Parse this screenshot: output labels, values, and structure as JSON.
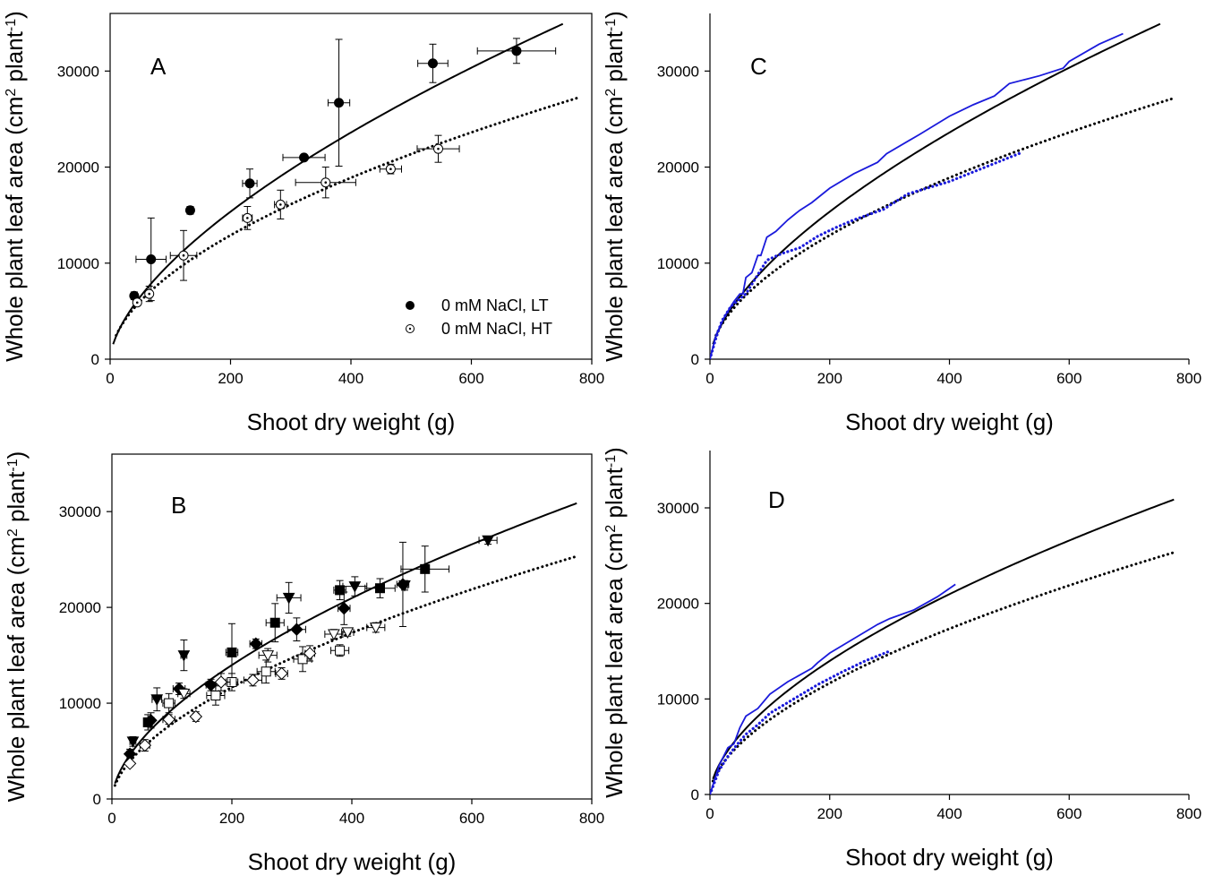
{
  "figure": {
    "legend": {
      "items": [
        {
          "label": "0 mM NaCl, LT",
          "marker": "filled-circle"
        },
        {
          "label": "0 mM NaCl, HT",
          "marker": "open-circle"
        }
      ]
    }
  },
  "chart_data": [
    {
      "panel": "A",
      "type": "scatter",
      "xlabel": "Shoot dry weight (g)",
      "ylabel": "Whole plant leaf area (cm2 plant-1)",
      "ylabel_base": "Whole plant leaf area (cm",
      "ylabel_sup1": "2",
      "ylabel_mid": " plant",
      "ylabel_sup2": "-1",
      "ylabel_end": ")",
      "xlim": [
        0,
        800
      ],
      "ylim": [
        0,
        36000
      ],
      "xticks": [
        "0",
        "200",
        "400",
        "600",
        "800"
      ],
      "yticks": [
        "0",
        "10000",
        "20000",
        "30000"
      ],
      "grid": false,
      "legend_position": "bottom-right",
      "series": [
        {
          "name": "0 mM NaCl, LT",
          "marker": "filled-circle",
          "points": [
            {
              "x": 40,
              "y": 6600,
              "xerr": 0,
              "yerr": 400
            },
            {
              "x": 68,
              "y": 10400,
              "xerr": 25,
              "yerr": 4300
            },
            {
              "x": 133,
              "y": 15500,
              "xerr": 5,
              "yerr": 400
            },
            {
              "x": 232,
              "y": 18300,
              "xerr": 12,
              "yerr": 1500
            },
            {
              "x": 322,
              "y": 21000,
              "xerr": 35,
              "yerr": 300
            },
            {
              "x": 380,
              "y": 26700,
              "xerr": 18,
              "yerr": 6600
            },
            {
              "x": 536,
              "y": 30800,
              "xerr": 25,
              "yerr": 2000
            },
            {
              "x": 675,
              "y": 32100,
              "xerr": 65,
              "yerr": 1300
            }
          ]
        },
        {
          "name": "0 mM NaCl, HT",
          "marker": "open-circle",
          "points": [
            {
              "x": 45,
              "y": 5900,
              "xerr": 0,
              "yerr": 300
            },
            {
              "x": 65,
              "y": 6800,
              "xerr": 5,
              "yerr": 800
            },
            {
              "x": 122,
              "y": 10800,
              "xerr": 22,
              "yerr": 2600
            },
            {
              "x": 228,
              "y": 14700,
              "xerr": 8,
              "yerr": 1200
            },
            {
              "x": 283,
              "y": 16100,
              "xerr": 10,
              "yerr": 1500
            },
            {
              "x": 358,
              "y": 18400,
              "xerr": 50,
              "yerr": 1600
            },
            {
              "x": 466,
              "y": 19800,
              "xerr": 18,
              "yerr": 500
            },
            {
              "x": 545,
              "y": 21900,
              "xerr": 35,
              "yerr": 1400
            }
          ]
        }
      ],
      "fits": [
        {
          "style": "solid",
          "a": 575,
          "b": 0.62,
          "x_from": 5,
          "x_to": 752
        },
        {
          "style": "dotted",
          "a": 700,
          "b": 0.55,
          "x_from": 10,
          "x_to": 775
        }
      ]
    },
    {
      "panel": "B",
      "type": "scatter",
      "xlabel": "Shoot dry weight (g)",
      "ylabel_base": "Whole plant leaf area (cm",
      "ylabel_sup1": "2",
      "ylabel_mid": " plant",
      "ylabel_sup2": "-1",
      "ylabel_end": ")",
      "xlim": [
        0,
        800
      ],
      "ylim": [
        0,
        36000
      ],
      "xticks": [
        "0",
        "200",
        "400",
        "600",
        "800"
      ],
      "yticks": [
        "0",
        "10000",
        "20000",
        "30000"
      ],
      "grid": false,
      "series": [
        {
          "marker": "filled-triangle-down",
          "points": [
            {
              "x": 35,
              "y": 6000,
              "xerr": 5,
              "yerr": 500
            },
            {
              "x": 75,
              "y": 10400,
              "xerr": 8,
              "yerr": 1200
            },
            {
              "x": 120,
              "y": 15000,
              "xerr": 5,
              "yerr": 1600
            },
            {
              "x": 295,
              "y": 21000,
              "xerr": 20,
              "yerr": 1600
            },
            {
              "x": 405,
              "y": 22200,
              "xerr": 20,
              "yerr": 1000
            },
            {
              "x": 488,
              "y": 22300,
              "xerr": 5,
              "yerr": 500
            },
            {
              "x": 627,
              "y": 27000,
              "xerr": 15,
              "yerr": 400
            }
          ]
        },
        {
          "marker": "filled-square",
          "points": [
            {
              "x": 60,
              "y": 8000,
              "xerr": 5,
              "yerr": 800
            },
            {
              "x": 200,
              "y": 15300,
              "xerr": 10,
              "yerr": 3000
            },
            {
              "x": 272,
              "y": 18400,
              "xerr": 15,
              "yerr": 2000
            },
            {
              "x": 380,
              "y": 21800,
              "xerr": 10,
              "yerr": 1000
            },
            {
              "x": 447,
              "y": 22000,
              "xerr": 25,
              "yerr": 1000
            },
            {
              "x": 522,
              "y": 24000,
              "xerr": 40,
              "yerr": 2400
            }
          ]
        },
        {
          "marker": "filled-diamond",
          "points": [
            {
              "x": 30,
              "y": 4700,
              "xerr": 5,
              "yerr": 500
            },
            {
              "x": 65,
              "y": 8200,
              "xerr": 5,
              "yerr": 800
            },
            {
              "x": 112,
              "y": 11500,
              "xerr": 10,
              "yerr": 600
            },
            {
              "x": 165,
              "y": 11900,
              "xerr": 8,
              "yerr": 600
            },
            {
              "x": 240,
              "y": 16200,
              "xerr": 10,
              "yerr": 500
            },
            {
              "x": 308,
              "y": 17700,
              "xerr": 15,
              "yerr": 1200
            },
            {
              "x": 387,
              "y": 19900,
              "xerr": 10,
              "yerr": 1700
            },
            {
              "x": 485,
              "y": 22400,
              "xerr": 10,
              "yerr": 4400
            }
          ]
        },
        {
          "marker": "open-triangle-down",
          "points": [
            {
              "x": 120,
              "y": 11000,
              "xerr": 10,
              "yerr": 500
            },
            {
              "x": 260,
              "y": 15000,
              "xerr": 15,
              "yerr": 700
            },
            {
              "x": 370,
              "y": 17200,
              "xerr": 15,
              "yerr": 500
            },
            {
              "x": 393,
              "y": 17400,
              "xerr": 10,
              "yerr": 400
            },
            {
              "x": 440,
              "y": 17900,
              "xerr": 15,
              "yerr": 500
            }
          ]
        },
        {
          "marker": "open-square",
          "points": [
            {
              "x": 95,
              "y": 10000,
              "xerr": 10,
              "yerr": 1000
            },
            {
              "x": 173,
              "y": 10800,
              "xerr": 15,
              "yerr": 1000
            },
            {
              "x": 200,
              "y": 12200,
              "xerr": 10,
              "yerr": 900
            },
            {
              "x": 257,
              "y": 13300,
              "xerr": 15,
              "yerr": 1200
            },
            {
              "x": 318,
              "y": 14600,
              "xerr": 15,
              "yerr": 1300
            },
            {
              "x": 380,
              "y": 15500,
              "xerr": 15,
              "yerr": 600
            }
          ]
        },
        {
          "marker": "open-diamond",
          "points": [
            {
              "x": 30,
              "y": 3700,
              "xerr": 4,
              "yerr": 300
            },
            {
              "x": 55,
              "y": 5600,
              "xerr": 8,
              "yerr": 600
            },
            {
              "x": 95,
              "y": 8300,
              "xerr": 10,
              "yerr": 500
            },
            {
              "x": 140,
              "y": 8600,
              "xerr": 5,
              "yerr": 500
            },
            {
              "x": 182,
              "y": 12200,
              "xerr": 15,
              "yerr": 900
            },
            {
              "x": 235,
              "y": 12400,
              "xerr": 15,
              "yerr": 600
            },
            {
              "x": 283,
              "y": 13100,
              "xerr": 10,
              "yerr": 600
            },
            {
              "x": 330,
              "y": 15200,
              "xerr": 8,
              "yerr": 800
            }
          ]
        }
      ],
      "fits": [
        {
          "style": "solid",
          "a": 630,
          "b": 0.585,
          "x_from": 5,
          "x_to": 775
        },
        {
          "style": "dotted",
          "a": 560,
          "b": 0.573,
          "x_from": 5,
          "x_to": 775
        }
      ]
    },
    {
      "panel": "C",
      "type": "line",
      "xlabel": "Shoot dry weight (g)",
      "ylabel_base": "Whole plant leaf area (cm",
      "ylabel_sup1": "2",
      "ylabel_mid": " plant",
      "ylabel_sup2": "-1",
      "ylabel_end": ")",
      "xlim": [
        0,
        800
      ],
      "ylim": [
        0,
        36000
      ],
      "xticks": [
        "0",
        "200",
        "400",
        "600",
        "800"
      ],
      "yticks": [
        "0",
        "10000",
        "20000",
        "30000"
      ],
      "grid": false,
      "fits": [
        {
          "style": "solid",
          "a": 575,
          "b": 0.62,
          "x_from": 5,
          "x_to": 752
        },
        {
          "style": "dotted",
          "a": 700,
          "b": 0.55,
          "x_from": 10,
          "x_to": 775
        }
      ],
      "series": [
        {
          "style": "solid-blue",
          "color": "#1a1adb",
          "points": [
            [
              0,
              0
            ],
            [
              10,
              2500
            ],
            [
              25,
              4500
            ],
            [
              40,
              6000
            ],
            [
              50,
              6800
            ],
            [
              55,
              6800
            ],
            [
              60,
              8500
            ],
            [
              70,
              9000
            ],
            [
              80,
              10800
            ],
            [
              85,
              10800
            ],
            [
              95,
              12700
            ],
            [
              110,
              13300
            ],
            [
              130,
              14500
            ],
            [
              150,
              15500
            ],
            [
              170,
              16300
            ],
            [
              200,
              17800
            ],
            [
              240,
              19300
            ],
            [
              280,
              20500
            ],
            [
              295,
              21400
            ],
            [
              350,
              23400
            ],
            [
              400,
              25300
            ],
            [
              440,
              26500
            ],
            [
              475,
              27400
            ],
            [
              500,
              28700
            ],
            [
              550,
              29500
            ],
            [
              590,
              30300
            ],
            [
              600,
              31000
            ],
            [
              650,
              32800
            ],
            [
              690,
              33900
            ]
          ]
        },
        {
          "style": "dotted-blue",
          "color": "#1a1adb",
          "points": [
            [
              0,
              0
            ],
            [
              10,
              2200
            ],
            [
              20,
              4000
            ],
            [
              35,
              5500
            ],
            [
              50,
              6300
            ],
            [
              60,
              6800
            ],
            [
              80,
              8800
            ],
            [
              95,
              10300
            ],
            [
              120,
              11000
            ],
            [
              150,
              11600
            ],
            [
              180,
              12800
            ],
            [
              210,
              13700
            ],
            [
              240,
              14500
            ],
            [
              290,
              15600
            ],
            [
              330,
              17200
            ],
            [
              400,
              18500
            ],
            [
              460,
              20000
            ],
            [
              520,
              21500
            ]
          ]
        }
      ]
    },
    {
      "panel": "D",
      "type": "line",
      "xlabel": "Shoot dry weight (g)",
      "ylabel_base": "Whole plant leaf area (cm",
      "ylabel_sup1": "2",
      "ylabel_mid": " plant",
      "ylabel_sup2": "-1",
      "ylabel_end": ")",
      "xlim": [
        0,
        800
      ],
      "ylim": [
        0,
        36000
      ],
      "xticks": [
        "0",
        "200",
        "400",
        "600",
        "800"
      ],
      "yticks": [
        "0",
        "10000",
        "20000",
        "30000"
      ],
      "grid": false,
      "fits": [
        {
          "style": "solid",
          "a": 630,
          "b": 0.585,
          "x_from": 5,
          "x_to": 775
        },
        {
          "style": "dotted",
          "a": 560,
          "b": 0.573,
          "x_from": 5,
          "x_to": 775
        }
      ],
      "series": [
        {
          "style": "solid-blue",
          "color": "#1a1adb",
          "points": [
            [
              0,
              0
            ],
            [
              15,
              3000
            ],
            [
              30,
              4900
            ],
            [
              40,
              5300
            ],
            [
              50,
              7000
            ],
            [
              60,
              8200
            ],
            [
              80,
              9000
            ],
            [
              100,
              10500
            ],
            [
              130,
              11800
            ],
            [
              170,
              13200
            ],
            [
              180,
              13800
            ],
            [
              200,
              14800
            ],
            [
              240,
              16300
            ],
            [
              280,
              17800
            ],
            [
              300,
              18400
            ],
            [
              340,
              19300
            ],
            [
              380,
              20700
            ],
            [
              410,
              22000
            ]
          ]
        },
        {
          "style": "dotted-blue",
          "color": "#1a1adb",
          "points": [
            [
              0,
              0
            ],
            [
              15,
              2500
            ],
            [
              30,
              4000
            ],
            [
              45,
              5200
            ],
            [
              60,
              6300
            ],
            [
              80,
              7300
            ],
            [
              100,
              8500
            ],
            [
              140,
              10000
            ],
            [
              180,
              11500
            ],
            [
              220,
              12800
            ],
            [
              260,
              14000
            ],
            [
              300,
              15000
            ]
          ]
        }
      ]
    }
  ]
}
